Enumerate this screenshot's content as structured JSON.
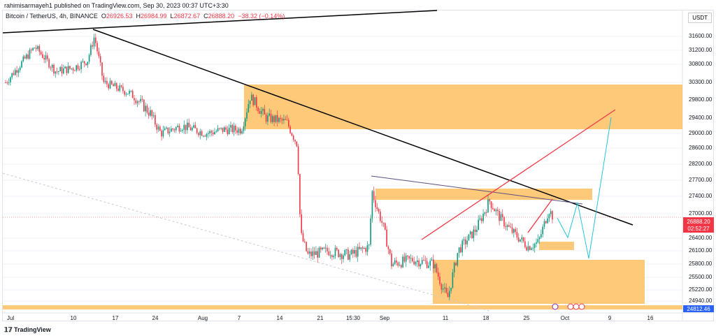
{
  "header": {
    "published": "rahimisarmayeh1 published on TradingView.com, Sep 30, 2023 00:37 UTC+3:30"
  },
  "legend": {
    "symbol": "Bitcoin / TetherUS, 4h, BINANCE",
    "open_label": "O",
    "open": "26926.53",
    "high_label": "H",
    "high": "26984.99",
    "low_label": "L",
    "low": "26872.67",
    "close_label": "C",
    "close": "26888.20",
    "change": "−38.32 (−0.14%)"
  },
  "currency": "USDT",
  "price_axis": [
    "31600.00",
    "31200.00",
    "30800.00",
    "30300.00",
    "29800.00",
    "29400.00",
    "29000.00",
    "28600.00",
    "28200.00",
    "27700.00",
    "27400.00",
    "27000.00",
    "26400.00",
    "26100.00",
    "25800.00",
    "25500.00",
    "25220.00",
    "24940.00"
  ],
  "last_price": {
    "value": "26888.20",
    "countdown": "02:52:27",
    "color": "#f23645"
  },
  "marker_price": {
    "value": "24812.46",
    "color": "#2962ff"
  },
  "time_axis": [
    "Jul",
    "10",
    "17",
    "24",
    "Aug",
    "7",
    "14",
    "21",
    "15:30",
    "Sep",
    "11",
    "18",
    "25",
    "Oct",
    "9",
    "16"
  ],
  "footer": {
    "brand": "TradingView"
  },
  "colors": {
    "up": "#089981",
    "down": "#f23645",
    "zone": "#ffb74d",
    "trend": "#000000",
    "channel": "#f23645",
    "projection": "#26c6da"
  }
}
